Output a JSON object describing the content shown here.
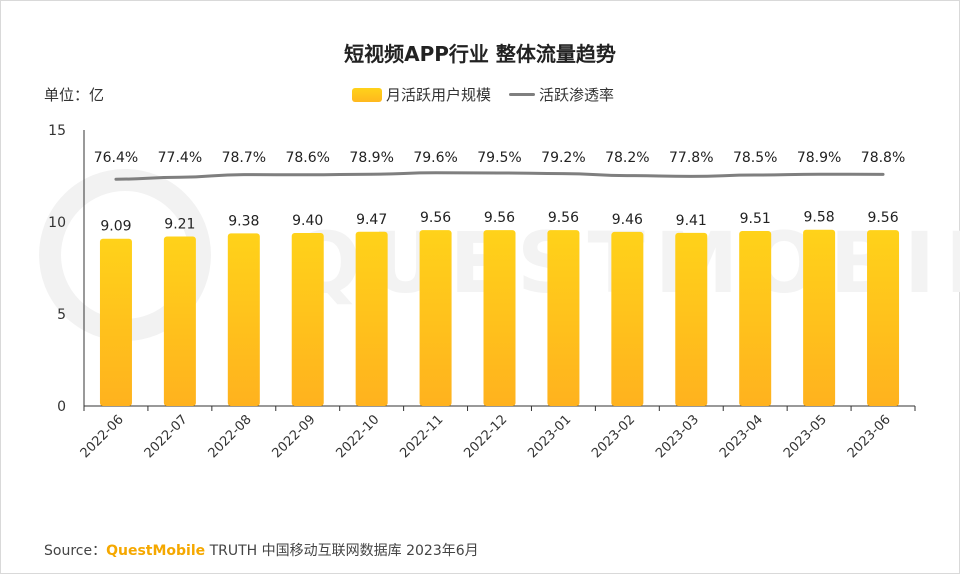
{
  "title": "短视频APP行业 整体流量趋势",
  "unit_label": "单位：亿",
  "legend": {
    "bar_label": "月活跃用户规模",
    "line_label": "活跃渗透率"
  },
  "watermark": "QUESTMOBILE",
  "source": {
    "prefix": "Source：",
    "brand_bold": "QuestMobile",
    "brand_suffix": " TRUTH",
    "text": " 中国移动互联网数据库 2023年6月"
  },
  "colors": {
    "bar_top": "#FFD21A",
    "bar_bottom": "#FFB21E",
    "line": "#7F7F7F",
    "brand": "#F5A800"
  },
  "chart_data": {
    "type": "bar",
    "categories": [
      "2022-06",
      "2022-07",
      "2022-08",
      "2022-09",
      "2022-10",
      "2022-11",
      "2022-12",
      "2023-01",
      "2023-02",
      "2023-03",
      "2023-04",
      "2023-05",
      "2023-06"
    ],
    "series": [
      {
        "name": "月活跃用户规模",
        "type": "bar",
        "values": [
          9.09,
          9.21,
          9.38,
          9.4,
          9.47,
          9.56,
          9.56,
          9.56,
          9.46,
          9.41,
          9.51,
          9.58,
          9.56
        ],
        "labels": [
          "9.09",
          "9.21",
          "9.38",
          "9.40",
          "9.47",
          "9.56",
          "9.56",
          "9.56",
          "9.46",
          "9.41",
          "9.51",
          "9.58",
          "9.56"
        ]
      },
      {
        "name": "活跃渗透率",
        "type": "line",
        "values": [
          76.4,
          77.4,
          78.7,
          78.6,
          78.9,
          79.6,
          79.5,
          79.2,
          78.2,
          77.8,
          78.5,
          78.9,
          78.8
        ],
        "labels": [
          "76.4%",
          "77.4%",
          "78.7%",
          "78.6%",
          "78.9%",
          "79.6%",
          "79.5%",
          "79.2%",
          "78.2%",
          "77.8%",
          "78.5%",
          "78.9%",
          "78.8%"
        ]
      }
    ],
    "ylim": [
      0,
      15
    ],
    "yticks": [
      "0",
      "5",
      "10",
      "15"
    ],
    "grid": false,
    "legend_position": "top-center"
  }
}
